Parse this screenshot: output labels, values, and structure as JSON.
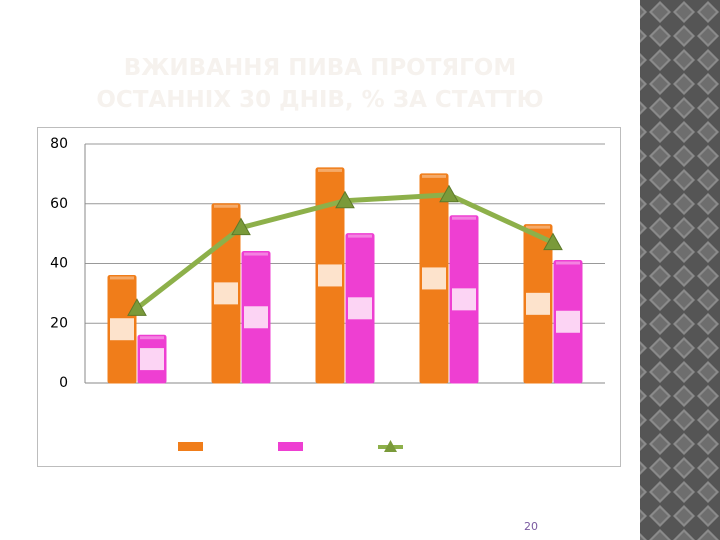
{
  "title": "ВЖИВАННЯ ПИВА ПРОТЯГОМ ОСТАННІХ 30 ДНІВ, % ЗА СТАТТЮ",
  "page_number": "20",
  "chart_data": {
    "type": "bar-line",
    "categories": [
      null,
      null,
      null,
      null,
      null
    ],
    "series": [
      {
        "type": "bar",
        "color": "#f07d1a",
        "values": [
          36,
          60,
          72,
          70,
          53
        ]
      },
      {
        "type": "bar",
        "color": "#ee3fd2",
        "values": [
          16,
          44,
          50,
          56,
          41
        ]
      },
      {
        "type": "line",
        "color": "#8db04a",
        "values": [
          25,
          52,
          61,
          63,
          47
        ]
      }
    ],
    "ylim": [
      0,
      80
    ],
    "yticks": [
      0,
      20,
      40,
      60,
      80
    ],
    "grid": true
  }
}
